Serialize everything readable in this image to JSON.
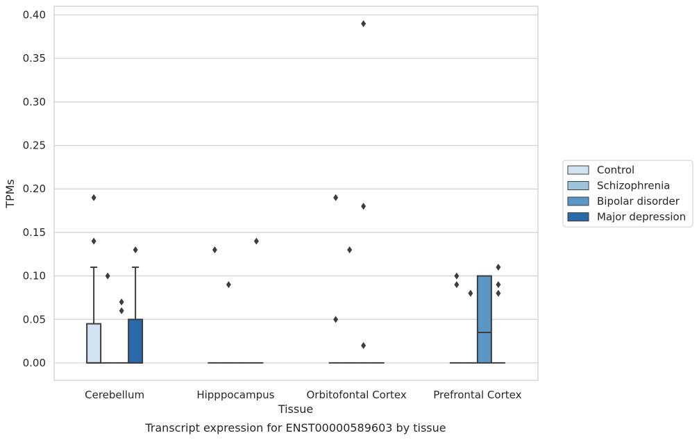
{
  "caption": "Transcript expression for ENST00000589603 by tissue",
  "chart_data": {
    "type": "box",
    "xlabel": "Tissue",
    "ylabel": "TPMs",
    "ylim": [
      -0.02,
      0.41
    ],
    "yticks": [
      "0.00",
      "0.05",
      "0.10",
      "0.15",
      "0.20",
      "0.25",
      "0.30",
      "0.35",
      "0.40"
    ],
    "ytick_values": [
      0,
      0.05,
      0.1,
      0.15,
      0.2,
      0.25,
      0.3,
      0.35,
      0.4
    ],
    "grid": true,
    "legend_placement": "right",
    "categories": [
      "Cerebellum",
      "Hipppocampus",
      "Orbitofontal Cortex",
      "Prefrontal Cortex"
    ],
    "series": [
      {
        "name": "Control",
        "color": "#d1e2f2",
        "boxes": [
          {
            "q1": 0,
            "median": 0,
            "q3": 0.045,
            "whisker_low": 0,
            "whisker_high": 0.11,
            "outliers": [
              0.19,
              0.14
            ]
          },
          {
            "q1": 0,
            "median": 0,
            "q3": 0,
            "whisker_low": 0,
            "whisker_high": 0,
            "outliers": [
              0.13
            ]
          },
          {
            "q1": 0,
            "median": 0,
            "q3": 0,
            "whisker_low": 0,
            "whisker_high": 0,
            "outliers": [
              0.19,
              0.05
            ]
          },
          {
            "q1": 0,
            "median": 0,
            "q3": 0,
            "whisker_low": 0,
            "whisker_high": 0,
            "outliers": [
              0.1,
              0.09
            ]
          }
        ]
      },
      {
        "name": "Schizophrenia",
        "color": "#9bc5dd",
        "boxes": [
          {
            "q1": 0,
            "median": 0,
            "q3": 0,
            "whisker_low": 0,
            "whisker_high": 0,
            "outliers": [
              0.1
            ]
          },
          {
            "q1": 0,
            "median": 0,
            "q3": 0,
            "whisker_low": 0,
            "whisker_high": 0,
            "outliers": [
              0.09
            ]
          },
          {
            "q1": 0,
            "median": 0,
            "q3": 0,
            "whisker_low": 0,
            "whisker_high": 0,
            "outliers": [
              0.13
            ]
          },
          {
            "q1": 0,
            "median": 0,
            "q3": 0,
            "whisker_low": 0,
            "whisker_high": 0,
            "outliers": [
              0.08
            ]
          }
        ]
      },
      {
        "name": "Bipolar disorder",
        "color": "#5a96c6",
        "boxes": [
          {
            "q1": 0,
            "median": 0,
            "q3": 0,
            "whisker_low": 0,
            "whisker_high": 0,
            "outliers": [
              0.07,
              0.06
            ]
          },
          {
            "q1": 0,
            "median": 0,
            "q3": 0,
            "whisker_low": 0,
            "whisker_high": 0,
            "outliers": []
          },
          {
            "q1": 0,
            "median": 0,
            "q3": 0,
            "whisker_low": 0,
            "whisker_high": 0,
            "outliers": [
              0.39,
              0.18,
              0.02
            ]
          },
          {
            "q1": 0,
            "median": 0.035,
            "q3": 0.1,
            "whisker_low": 0,
            "whisker_high": 0.1,
            "outliers": []
          }
        ]
      },
      {
        "name": "Major depression",
        "color": "#2a6aab",
        "boxes": [
          {
            "q1": 0,
            "median": 0,
            "q3": 0.05,
            "whisker_low": 0,
            "whisker_high": 0.11,
            "outliers": [
              0.13
            ]
          },
          {
            "q1": 0,
            "median": 0,
            "q3": 0,
            "whisker_low": 0,
            "whisker_high": 0,
            "outliers": [
              0.14
            ]
          },
          {
            "q1": 0,
            "median": 0,
            "q3": 0,
            "whisker_low": 0,
            "whisker_high": 0,
            "outliers": []
          },
          {
            "q1": 0,
            "median": 0,
            "q3": 0,
            "whisker_low": 0,
            "whisker_high": 0,
            "outliers": [
              0.11,
              0.09,
              0.08
            ]
          }
        ]
      }
    ]
  }
}
